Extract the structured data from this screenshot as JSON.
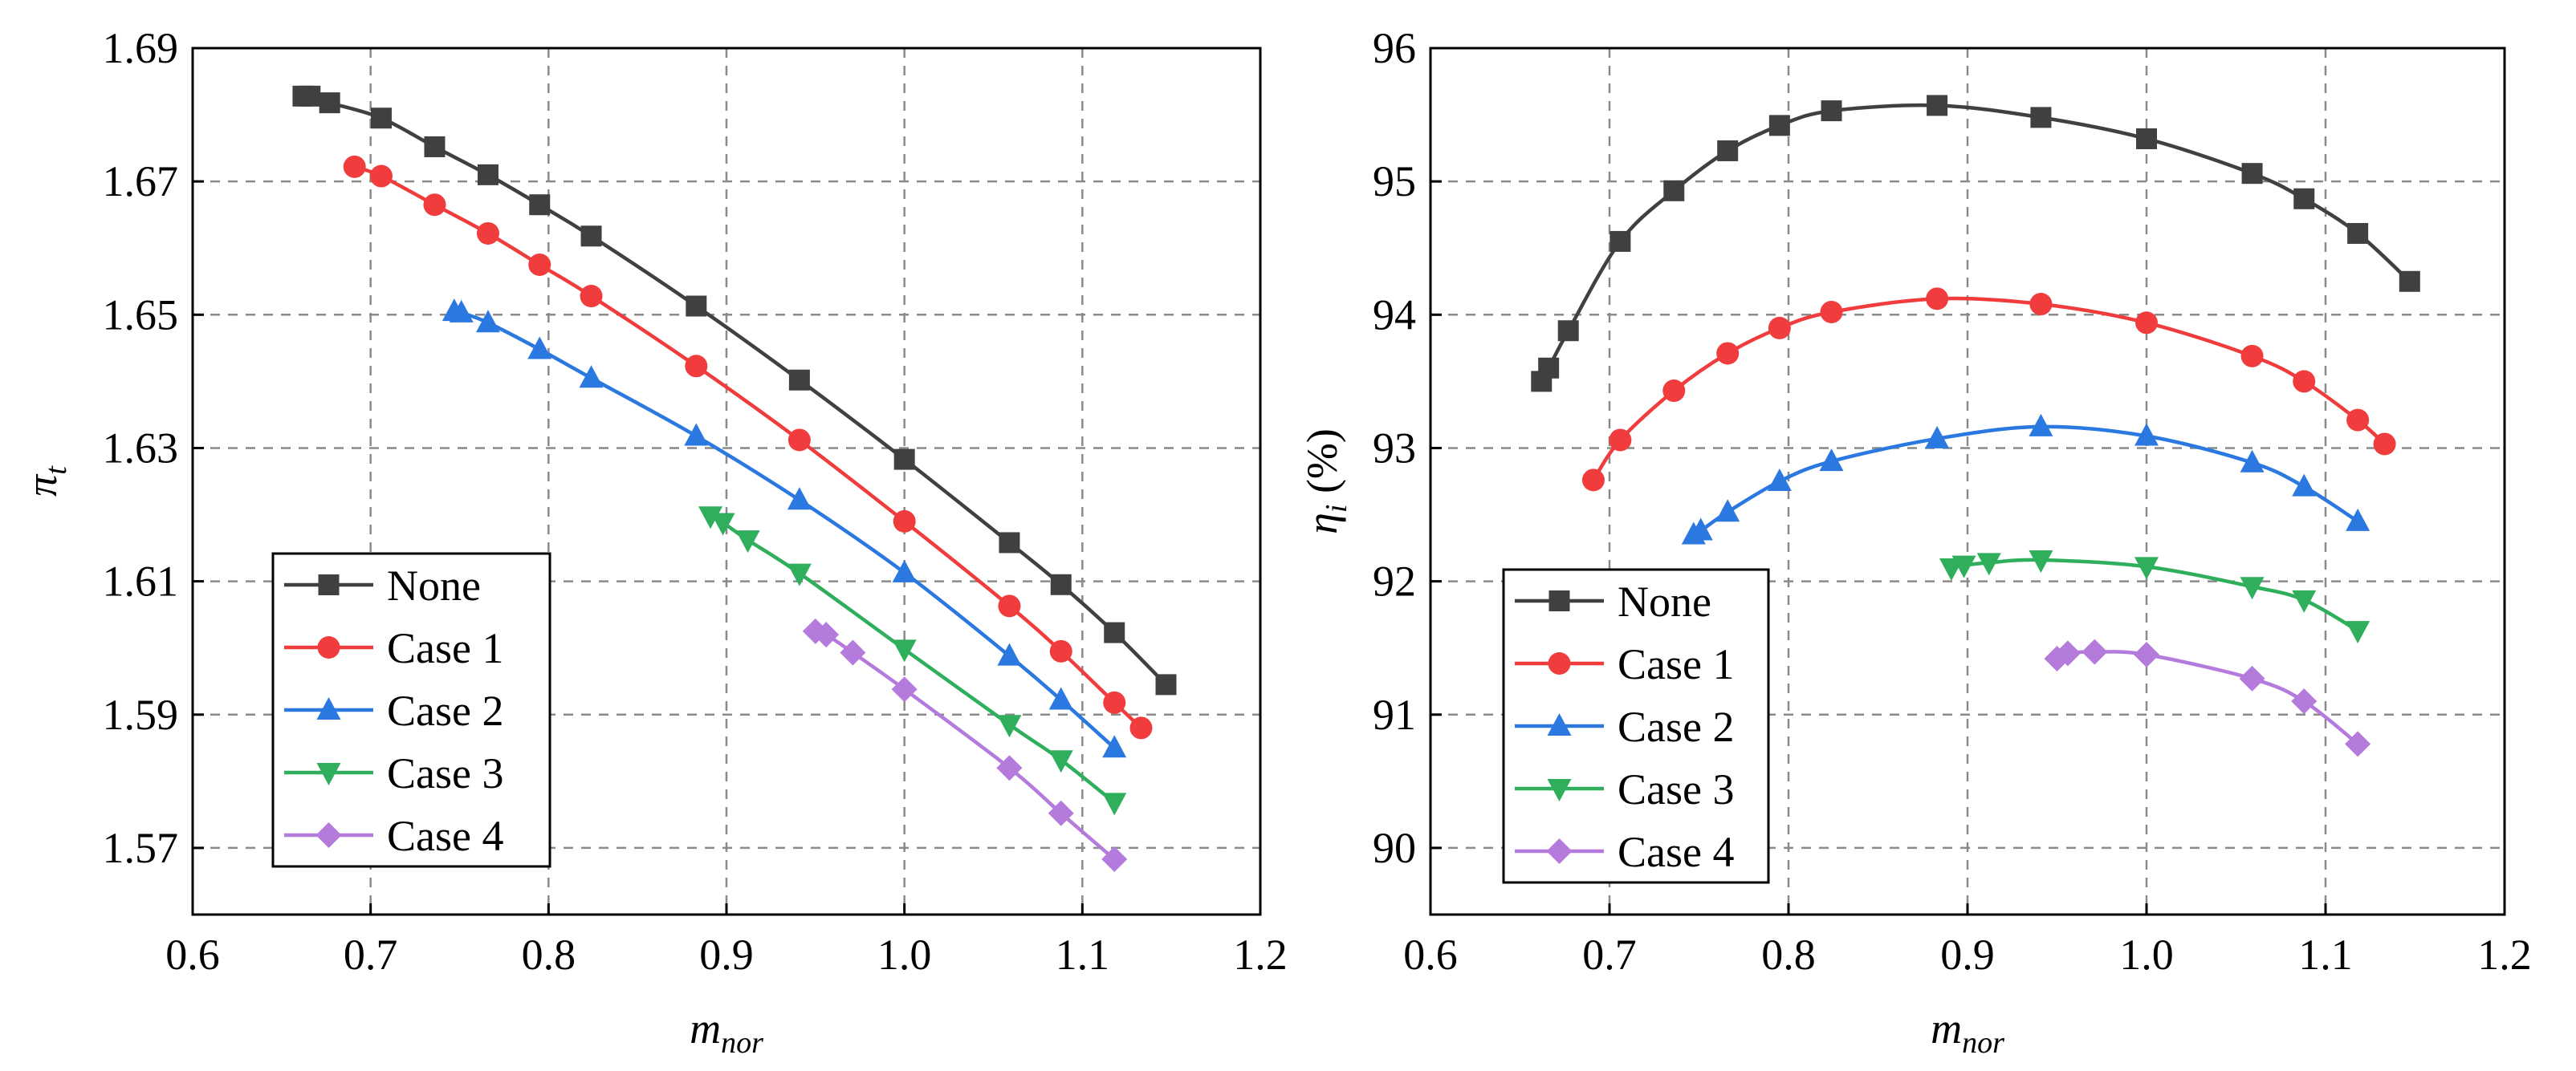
{
  "chart_data": [
    {
      "type": "line",
      "xlabel": {
        "main": "m",
        "sub": "nor"
      },
      "ylabel": {
        "main": "π",
        "sub": "t"
      },
      "xlim": [
        0.6,
        1.2
      ],
      "ylim": [
        1.56,
        1.69
      ],
      "xticks": [
        "0.6",
        "0.7",
        "0.8",
        "0.9",
        "1.0",
        "1.1",
        "1.2"
      ],
      "yticks": [
        "1.57",
        "1.59",
        "1.61",
        "1.63",
        "1.65",
        "1.67",
        "1.69"
      ],
      "grid": true,
      "legend_position": "bottom-left",
      "series": [
        {
          "name": "None",
          "marker": "square",
          "color": "#404040",
          "x": [
            0.662,
            0.666,
            0.677,
            0.706,
            0.736,
            0.766,
            0.795,
            0.824,
            0.883,
            0.941,
            1.0,
            1.059,
            1.088,
            1.118,
            1.147
          ],
          "y": [
            1.6828,
            1.6828,
            1.6818,
            1.6795,
            1.6752,
            1.671,
            1.6665,
            1.6618,
            1.6513,
            1.6402,
            1.6283,
            1.6158,
            1.6095,
            1.6023,
            1.5945
          ]
        },
        {
          "name": "Case 1",
          "marker": "circle",
          "color": "#f03c3c",
          "x": [
            0.691,
            0.706,
            0.736,
            0.766,
            0.795,
            0.824,
            0.883,
            0.941,
            1.0,
            1.059,
            1.088,
            1.118,
            1.133
          ],
          "y": [
            1.6722,
            1.6708,
            1.6665,
            1.6622,
            1.6575,
            1.6528,
            1.6423,
            1.6312,
            1.619,
            1.6063,
            1.5995,
            1.5918,
            1.588
          ]
        },
        {
          "name": "Case 2",
          "marker": "triangle-up",
          "color": "#2a78e0",
          "x": [
            0.747,
            0.751,
            0.766,
            0.795,
            0.824,
            0.883,
            0.941,
            1.0,
            1.059,
            1.088,
            1.118
          ],
          "y": [
            1.6505,
            1.6503,
            1.6488,
            1.6448,
            1.6405,
            1.6318,
            1.6222,
            1.6113,
            1.5988,
            1.5922,
            1.585
          ]
        },
        {
          "name": "Case 3",
          "marker": "triangle-down",
          "color": "#2fae5c",
          "x": [
            0.891,
            0.898,
            0.912,
            0.941,
            1.0,
            1.059,
            1.088,
            1.118
          ],
          "y": [
            1.6198,
            1.6188,
            1.6162,
            1.6112,
            1.5998,
            1.5885,
            1.5832,
            1.5768
          ]
        },
        {
          "name": "Case 4",
          "marker": "diamond",
          "color": "#b47adc",
          "x": [
            0.95,
            0.956,
            0.971,
            1.0,
            1.059,
            1.088,
            1.118
          ],
          "y": [
            1.6025,
            1.602,
            1.5993,
            1.5938,
            1.582,
            1.5752,
            1.5683
          ]
        }
      ]
    },
    {
      "type": "line",
      "xlabel": {
        "main": "m",
        "sub": "nor"
      },
      "ylabel": {
        "main": "η",
        "sub": "i",
        "unit": " (%)"
      },
      "xlim": [
        0.6,
        1.2
      ],
      "ylim": [
        89.5,
        96.0
      ],
      "xticks": [
        "0.6",
        "0.7",
        "0.8",
        "0.9",
        "1.0",
        "1.1",
        "1.2"
      ],
      "yticks": [
        "90",
        "91",
        "92",
        "93",
        "94",
        "95",
        "96"
      ],
      "grid": true,
      "legend_position": "bottom-left",
      "series": [
        {
          "name": "None",
          "marker": "square",
          "color": "#404040",
          "x": [
            0.662,
            0.666,
            0.677,
            0.706,
            0.736,
            0.766,
            0.795,
            0.824,
            0.883,
            0.941,
            1.0,
            1.059,
            1.088,
            1.118,
            1.147
          ],
          "y": [
            93.5,
            93.6,
            93.88,
            94.55,
            94.93,
            95.23,
            95.42,
            95.53,
            95.57,
            95.48,
            95.32,
            95.06,
            94.87,
            94.61,
            94.25
          ]
        },
        {
          "name": "Case 1",
          "marker": "circle",
          "color": "#f03c3c",
          "x": [
            0.691,
            0.706,
            0.736,
            0.766,
            0.795,
            0.824,
            0.883,
            0.941,
            1.0,
            1.059,
            1.088,
            1.118,
            1.133
          ],
          "y": [
            92.76,
            93.06,
            93.43,
            93.71,
            93.9,
            94.02,
            94.12,
            94.08,
            93.94,
            93.69,
            93.5,
            93.21,
            93.03
          ]
        },
        {
          "name": "Case 2",
          "marker": "triangle-up",
          "color": "#2a78e0",
          "x": [
            0.747,
            0.751,
            0.766,
            0.795,
            0.824,
            0.883,
            0.941,
            1.0,
            1.059,
            1.088,
            1.118
          ],
          "y": [
            92.35,
            92.38,
            92.52,
            92.75,
            92.9,
            93.07,
            93.16,
            93.09,
            92.89,
            92.71,
            92.45
          ]
        },
        {
          "name": "Case 3",
          "marker": "triangle-down",
          "color": "#2fae5c",
          "x": [
            0.891,
            0.898,
            0.912,
            0.941,
            1.0,
            1.059,
            1.088,
            1.118
          ],
          "y": [
            92.1,
            92.12,
            92.14,
            92.16,
            92.11,
            91.96,
            91.86,
            91.63
          ]
        },
        {
          "name": "Case 4",
          "marker": "diamond",
          "color": "#b47adc",
          "x": [
            0.95,
            0.956,
            0.971,
            1.0,
            1.059,
            1.088,
            1.118
          ],
          "y": [
            91.42,
            91.46,
            91.47,
            91.45,
            91.27,
            91.1,
            90.78
          ]
        }
      ]
    }
  ]
}
